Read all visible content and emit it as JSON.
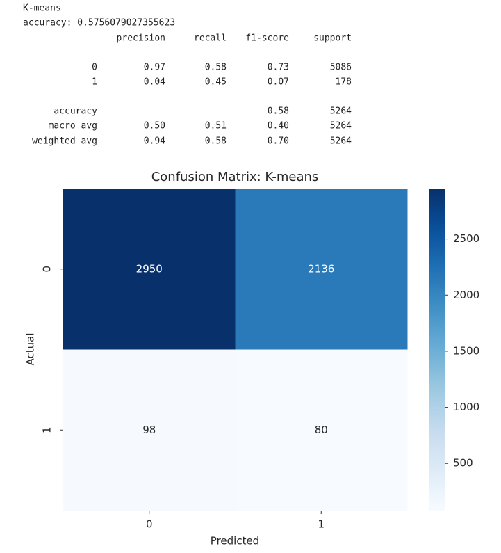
{
  "report": {
    "title": "K-means",
    "accuracy_line": "accuracy: 0.5756079027355623",
    "headers": [
      "precision",
      "recall",
      "f1-score",
      "support"
    ],
    "rows": [
      [
        "0",
        "0.97",
        "0.58",
        "0.73",
        "5086"
      ],
      [
        "1",
        "0.04",
        "0.45",
        "0.07",
        "178"
      ],
      [
        "accuracy",
        null,
        null,
        "0.58",
        "5264"
      ],
      [
        "macro avg",
        "0.50",
        "0.51",
        "0.40",
        "5264"
      ],
      [
        "weighted avg",
        "0.94",
        "0.58",
        "0.70",
        "5264"
      ]
    ]
  },
  "chart_data": {
    "type": "heatmap",
    "title": "Confusion Matrix: K-means",
    "x_label": "Predicted",
    "y_label": "Actual",
    "x_categories": [
      "0",
      "1"
    ],
    "y_categories": [
      "0",
      "1"
    ],
    "values": [
      [
        2950,
        2136
      ],
      [
        98,
        80
      ]
    ],
    "colormap": "Blues",
    "clim": [
      80,
      2950
    ],
    "cticks": [
      500,
      1000,
      1500,
      2000,
      2500
    ]
  }
}
